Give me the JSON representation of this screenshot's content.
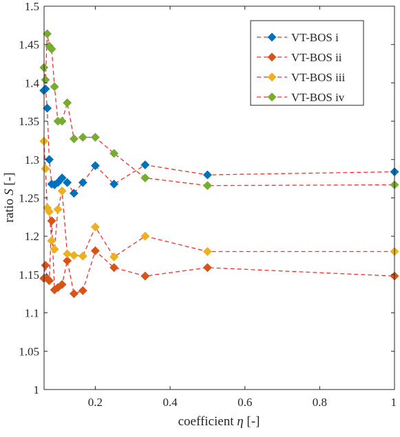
{
  "chart_data": {
    "type": "line",
    "title": "",
    "xlabel_prefix": "coefficient ",
    "xlabel_symbol": "η",
    "xlabel_suffix": " [-]",
    "ylabel_prefix": "ratio ",
    "ylabel_symbol": "S",
    "ylabel_suffix": " [-]",
    "xlim": [
      0.063,
      1.0
    ],
    "ylim": [
      1.0,
      1.5
    ],
    "xticks": [
      0.2,
      0.4,
      0.6,
      0.8,
      1.0
    ],
    "xtick_labels": [
      "0.2",
      "0.4",
      "0.6",
      "0.8",
      "1"
    ],
    "yticks": [
      1.0,
      1.05,
      1.1,
      1.15,
      1.2,
      1.25,
      1.3,
      1.35,
      1.4,
      1.45,
      1.5
    ],
    "ytick_labels": [
      "1",
      "1.05",
      "1.1",
      "1.15",
      "1.2",
      "1.25",
      "1.3",
      "1.35",
      "1.4",
      "1.45",
      "1.5"
    ],
    "grid": false,
    "legend_position": "top-right",
    "line_color": "#ff2a2a",
    "line_style": "dashed",
    "marker": "diamond",
    "series": [
      {
        "name": "VT-BOS i",
        "color": "#0072bd",
        "x": [
          0.0625,
          0.0667,
          0.0714,
          0.0769,
          0.0833,
          0.0909,
          0.1,
          0.1111,
          0.125,
          0.1429,
          0.1667,
          0.2,
          0.25,
          0.3333,
          0.5,
          1.0
        ],
        "y": [
          1.39,
          1.392,
          1.367,
          1.3,
          1.268,
          1.267,
          1.27,
          1.276,
          1.27,
          1.256,
          1.27,
          1.292,
          1.268,
          1.293,
          1.28,
          1.284
        ]
      },
      {
        "name": "VT-BOS ii",
        "color": "#d95319",
        "x": [
          0.0625,
          0.0667,
          0.0714,
          0.0769,
          0.0833,
          0.0909,
          0.1,
          0.1111,
          0.125,
          0.1429,
          0.1667,
          0.2,
          0.25,
          0.3333,
          0.5,
          1.0
        ],
        "y": [
          1.145,
          1.162,
          1.145,
          1.142,
          1.22,
          1.13,
          1.133,
          1.137,
          1.168,
          1.125,
          1.129,
          1.181,
          1.159,
          1.148,
          1.159,
          1.148
        ]
      },
      {
        "name": "VT-BOS iii",
        "color": "#edb120",
        "x": [
          0.0625,
          0.0667,
          0.0714,
          0.0769,
          0.0833,
          0.0909,
          0.1,
          0.1111,
          0.125,
          0.1429,
          0.1667,
          0.2,
          0.25,
          0.3333,
          0.5,
          1.0
        ],
        "y": [
          1.324,
          1.288,
          1.237,
          1.232,
          1.194,
          1.183,
          1.235,
          1.259,
          1.177,
          1.175,
          1.174,
          1.212,
          1.173,
          1.2,
          1.18,
          1.18
        ]
      },
      {
        "name": "VT-BOS iv",
        "color": "#77ac30",
        "x": [
          0.0625,
          0.0667,
          0.0714,
          0.0769,
          0.0833,
          0.0909,
          0.1,
          0.1111,
          0.125,
          0.1429,
          0.1667,
          0.2,
          0.25,
          0.3333,
          0.5,
          1.0
        ],
        "y": [
          1.42,
          1.404,
          1.464,
          1.448,
          1.444,
          1.395,
          1.35,
          1.35,
          1.374,
          1.327,
          1.329,
          1.329,
          1.308,
          1.276,
          1.266,
          1.267
        ]
      }
    ]
  }
}
